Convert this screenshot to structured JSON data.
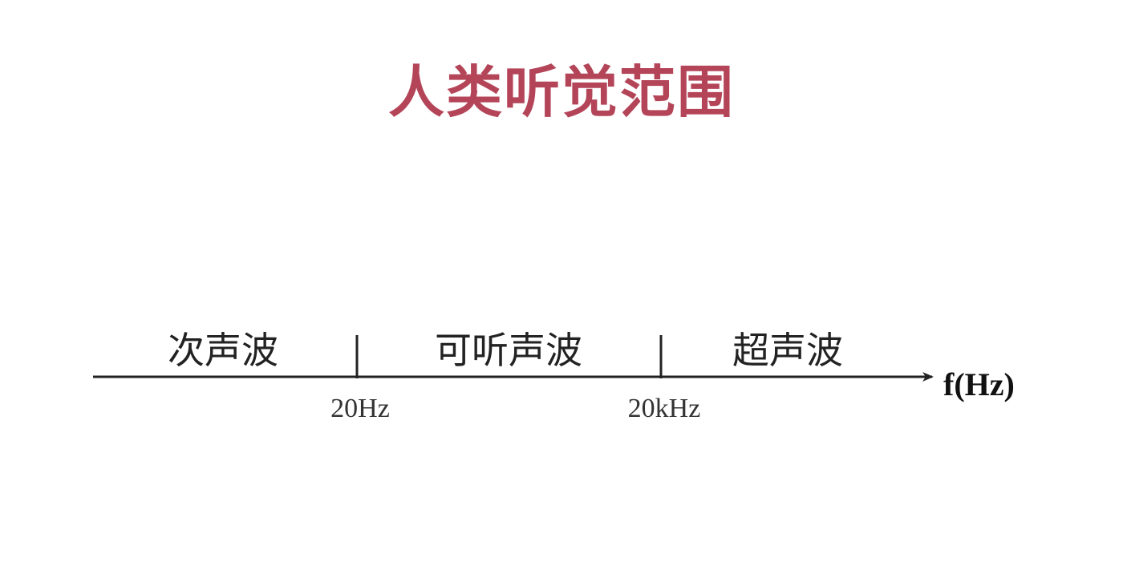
{
  "title": "人类听觉范围",
  "diagram": {
    "regions": [
      {
        "label": "次声波"
      },
      {
        "label": "可听声波"
      },
      {
        "label": "超声波"
      }
    ],
    "ticks": [
      {
        "label": "20Hz"
      },
      {
        "label": "20kHz"
      }
    ],
    "axis_label": "f(Hz)"
  },
  "colors": {
    "title": "#b44559",
    "axis": "#222222"
  }
}
